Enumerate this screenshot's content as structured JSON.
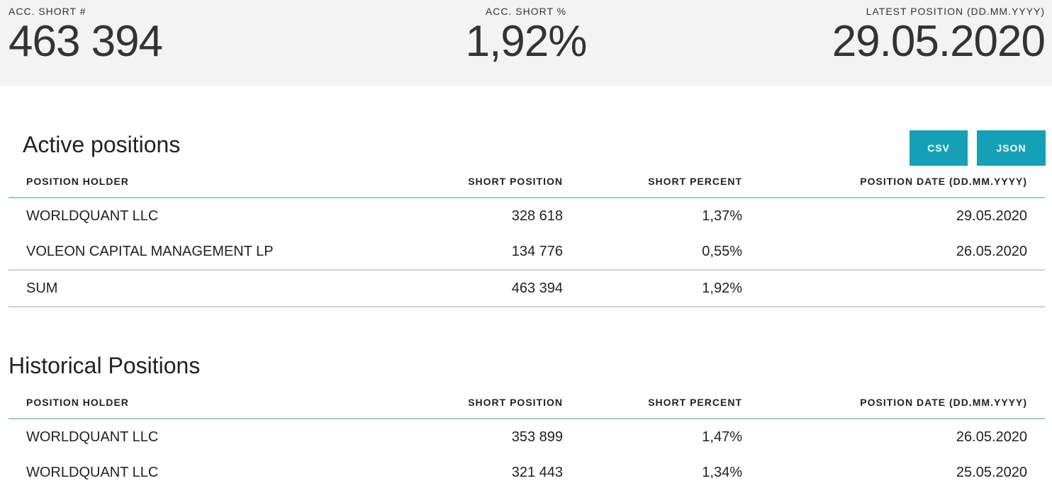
{
  "summary": {
    "acc_short_count_label": "ACC. SHORT #",
    "acc_short_count_value": "463 394",
    "acc_short_pct_label": "ACC. SHORT %",
    "acc_short_pct_value": "1,92%",
    "latest_position_label": "LATEST POSITION (DD.MM.YYYY)",
    "latest_position_value": "29.05.2020"
  },
  "active": {
    "title": "Active positions",
    "buttons": {
      "csv": "CSV",
      "json": "JSON"
    },
    "headers": [
      "POSITION HOLDER",
      "SHORT POSITION",
      "SHORT PERCENT",
      "POSITION DATE (DD.MM.YYYY)"
    ],
    "rows": [
      [
        "WORLDQUANT LLC",
        "328 618",
        "1,37%",
        "29.05.2020"
      ],
      [
        "VOLEON CAPITAL MANAGEMENT LP",
        "134 776",
        "0,55%",
        "26.05.2020"
      ]
    ],
    "sum": [
      "SUM",
      "463 394",
      "1,92%",
      ""
    ]
  },
  "historical": {
    "title": "Historical Positions",
    "headers": [
      "POSITION HOLDER",
      "SHORT POSITION",
      "SHORT PERCENT",
      "POSITION DATE (DD.MM.YYYY)"
    ],
    "rows": [
      [
        "WORLDQUANT LLC",
        "353 899",
        "1,47%",
        "26.05.2020"
      ],
      [
        "WORLDQUANT LLC",
        "321 443",
        "1,34%",
        "25.05.2020"
      ]
    ]
  },
  "colors": {
    "accent": "#15a0b8",
    "header_bg": "#f3f3f3",
    "divider": "#8fd0d8"
  }
}
